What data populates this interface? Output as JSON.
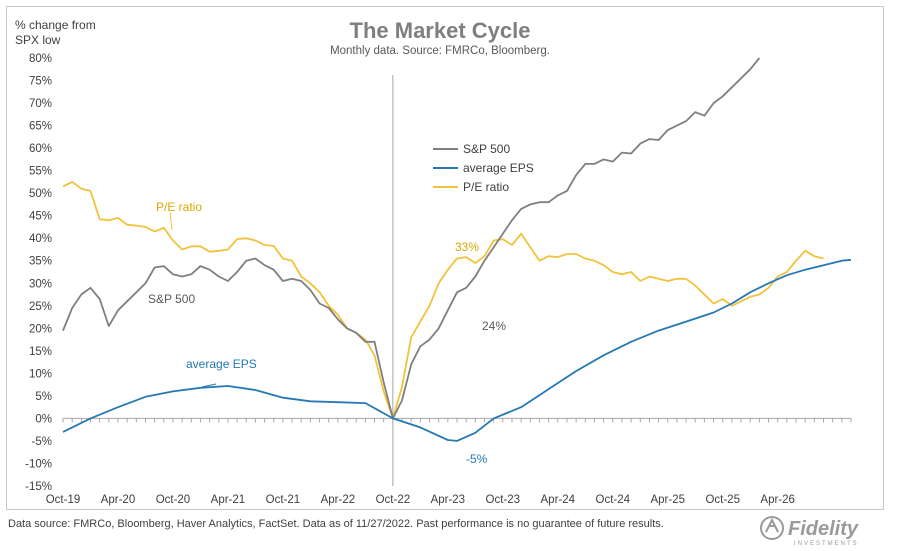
{
  "chart_data": {
    "type": "line",
    "title": "The Market Cycle",
    "subtitle": "Monthly data.  Source: FMRCo, Bloomberg.",
    "ylabel_line1": "% change from",
    "ylabel_line2": "SPX low",
    "xlabel": "",
    "ylim": [
      -15,
      80
    ],
    "yticks": [
      "-15%",
      "-10%",
      "-5%",
      "0%",
      "5%",
      "10%",
      "15%",
      "20%",
      "25%",
      "30%",
      "35%",
      "40%",
      "45%",
      "50%",
      "55%",
      "60%",
      "65%",
      "70%",
      "75%",
      "80%"
    ],
    "xticks": [
      "Oct-19",
      "Apr-20",
      "Oct-20",
      "Apr-21",
      "Oct-21",
      "Apr-22",
      "Oct-22",
      "Apr-23",
      "Oct-23",
      "Apr-24",
      "Oct-24",
      "Apr-25",
      "Oct-25",
      "Apr-26"
    ],
    "center_month": 36,
    "grid": false,
    "legend_position": "center-right",
    "series": [
      {
        "name": "S&P 500",
        "color": "#7f7f7f",
        "values": [
          [
            0,
            19.5
          ],
          [
            1,
            24.5
          ],
          [
            2,
            27.5
          ],
          [
            3,
            29
          ],
          [
            4,
            26.5
          ],
          [
            5,
            20.5
          ],
          [
            6,
            24
          ],
          [
            7,
            26
          ],
          [
            8,
            28
          ],
          [
            9,
            30
          ],
          [
            10,
            33.5
          ],
          [
            11,
            33.8
          ],
          [
            12,
            32
          ],
          [
            13,
            31.5
          ],
          [
            14,
            32
          ],
          [
            15,
            33.8
          ],
          [
            16,
            33
          ],
          [
            17,
            31.5
          ],
          [
            18,
            30.5
          ],
          [
            19,
            32.5
          ],
          [
            20,
            35
          ],
          [
            21,
            35.5
          ],
          [
            22,
            34
          ],
          [
            23,
            33
          ],
          [
            24,
            30.5
          ],
          [
            25,
            31
          ],
          [
            26,
            30.5
          ],
          [
            27,
            28.5
          ],
          [
            28,
            25.5
          ],
          [
            29,
            24.5
          ],
          [
            30,
            22
          ],
          [
            31,
            20
          ],
          [
            32,
            19
          ],
          [
            33,
            17
          ],
          [
            34,
            17
          ],
          [
            35,
            8
          ],
          [
            36,
            0
          ],
          [
            37,
            4
          ],
          [
            38,
            12
          ],
          [
            39,
            16
          ],
          [
            40,
            17.5
          ],
          [
            41,
            20
          ],
          [
            42,
            24
          ],
          [
            43,
            28
          ],
          [
            44,
            29
          ],
          [
            45,
            31.5
          ],
          [
            46,
            35
          ],
          [
            47,
            38
          ],
          [
            48,
            41
          ],
          [
            49,
            44
          ],
          [
            50,
            46.5
          ],
          [
            51,
            47.5
          ],
          [
            52,
            48
          ],
          [
            53,
            48
          ],
          [
            54,
            49.5
          ],
          [
            55,
            50.5
          ],
          [
            56,
            54
          ],
          [
            57,
            56.5
          ],
          [
            58,
            56.5
          ],
          [
            59,
            57.5
          ],
          [
            60,
            57
          ],
          [
            61,
            59
          ],
          [
            62,
            58.8
          ],
          [
            63,
            61
          ],
          [
            64,
            62
          ],
          [
            65,
            61.8
          ],
          [
            66,
            64
          ],
          [
            67,
            65
          ],
          [
            68,
            66
          ],
          [
            69,
            68
          ],
          [
            70,
            67.2
          ],
          [
            71,
            70
          ],
          [
            72,
            71.5
          ],
          [
            73,
            73.5
          ],
          [
            74,
            75.5
          ],
          [
            75,
            77.5
          ],
          [
            76,
            80
          ]
        ]
      },
      {
        "name": "average EPS",
        "color": "#2479b3",
        "values": [
          [
            0,
            -3
          ],
          [
            3,
            0
          ],
          [
            6,
            2.5
          ],
          [
            9,
            4.8
          ],
          [
            12,
            6
          ],
          [
            15,
            6.8
          ],
          [
            18,
            7.2
          ],
          [
            21,
            6.3
          ],
          [
            24,
            4.6
          ],
          [
            27,
            3.8
          ],
          [
            30,
            3.6
          ],
          [
            33,
            3.4
          ],
          [
            36,
            0
          ],
          [
            39,
            -2
          ],
          [
            42,
            -4.8
          ],
          [
            43,
            -5
          ],
          [
            45,
            -3.2
          ],
          [
            47,
            0
          ],
          [
            50,
            2.5
          ],
          [
            53,
            6.5
          ],
          [
            56,
            10.5
          ],
          [
            59,
            14
          ],
          [
            62,
            17
          ],
          [
            65,
            19.5
          ],
          [
            68,
            21.5
          ],
          [
            71,
            23.5
          ],
          [
            73,
            25.5
          ],
          [
            75,
            28
          ],
          [
            77,
            30
          ],
          [
            79,
            31.8
          ],
          [
            81,
            33
          ],
          [
            83,
            34
          ],
          [
            85,
            35
          ],
          [
            86,
            35.2
          ]
        ]
      },
      {
        "name": "P/E ratio",
        "color": "#f2c23a",
        "values": [
          [
            0,
            51.5
          ],
          [
            1,
            52.5
          ],
          [
            2,
            51
          ],
          [
            3,
            50.5
          ],
          [
            4,
            44.2
          ],
          [
            5,
            44
          ],
          [
            6,
            44.5
          ],
          [
            7,
            43
          ],
          [
            8,
            42.8
          ],
          [
            9,
            42.5
          ],
          [
            10,
            41.5
          ],
          [
            11,
            42.3
          ],
          [
            12,
            39.5
          ],
          [
            13,
            37.5
          ],
          [
            14,
            38.2
          ],
          [
            15,
            38.2
          ],
          [
            16,
            37
          ],
          [
            17,
            37.2
          ],
          [
            18,
            37.5
          ],
          [
            19,
            39.8
          ],
          [
            20,
            40
          ],
          [
            21,
            39.5
          ],
          [
            22,
            38.5
          ],
          [
            23,
            38.3
          ],
          [
            24,
            35.5
          ],
          [
            25,
            35
          ],
          [
            26,
            31.5
          ],
          [
            27,
            30
          ],
          [
            28,
            28
          ],
          [
            29,
            25
          ],
          [
            30,
            23
          ],
          [
            31,
            20
          ],
          [
            32,
            19
          ],
          [
            33,
            17.5
          ],
          [
            34,
            14
          ],
          [
            35,
            6
          ],
          [
            36,
            0
          ],
          [
            37,
            7
          ],
          [
            38,
            18
          ],
          [
            39,
            21.5
          ],
          [
            40,
            25
          ],
          [
            41,
            30
          ],
          [
            42,
            33
          ],
          [
            43,
            35.5
          ],
          [
            44,
            35.8
          ],
          [
            45,
            34.5
          ],
          [
            46,
            36
          ],
          [
            47,
            39.5
          ],
          [
            48,
            39.8
          ],
          [
            49,
            38.5
          ],
          [
            50,
            41
          ],
          [
            51,
            38
          ],
          [
            52,
            35
          ],
          [
            53,
            36
          ],
          [
            54,
            35.8
          ],
          [
            55,
            36.5
          ],
          [
            56,
            36.5
          ],
          [
            57,
            35.5
          ],
          [
            58,
            35
          ],
          [
            59,
            34
          ],
          [
            60,
            32.5
          ],
          [
            61,
            32
          ],
          [
            62,
            32.5
          ],
          [
            63,
            30.5
          ],
          [
            64,
            31.5
          ],
          [
            65,
            31
          ],
          [
            66,
            30.5
          ],
          [
            67,
            31
          ],
          [
            68,
            31
          ],
          [
            69,
            29.5
          ],
          [
            70,
            27.5
          ],
          [
            71,
            25.5
          ],
          [
            72,
            26.5
          ],
          [
            73,
            25
          ],
          [
            74,
            26
          ],
          [
            75,
            27
          ],
          [
            76,
            27.5
          ],
          [
            77,
            29
          ],
          [
            78,
            31.5
          ],
          [
            79,
            32.5
          ],
          [
            80,
            35
          ],
          [
            81,
            37.2
          ],
          [
            82,
            36
          ],
          [
            83,
            35.5
          ]
        ]
      }
    ],
    "annotations": [
      {
        "text": "P/E ratio",
        "series": "P/E ratio"
      },
      {
        "text": "S&P 500",
        "series": "S&P 500"
      },
      {
        "text": "average EPS",
        "series": "average EPS"
      },
      {
        "text": "33%",
        "series": "P/E ratio"
      },
      {
        "text": "24%",
        "series": "S&P 500"
      },
      {
        "text": "-5%",
        "series": "average EPS"
      }
    ]
  },
  "footer": {
    "source_note": "Data source: FMRCo, Bloomberg, Haver Analytics, FactSet. Data as of 11/27/2022. Past performance is no guarantee of future results.",
    "logo_text": "Fidelity",
    "logo_subtext": "INVESTMENTS"
  }
}
